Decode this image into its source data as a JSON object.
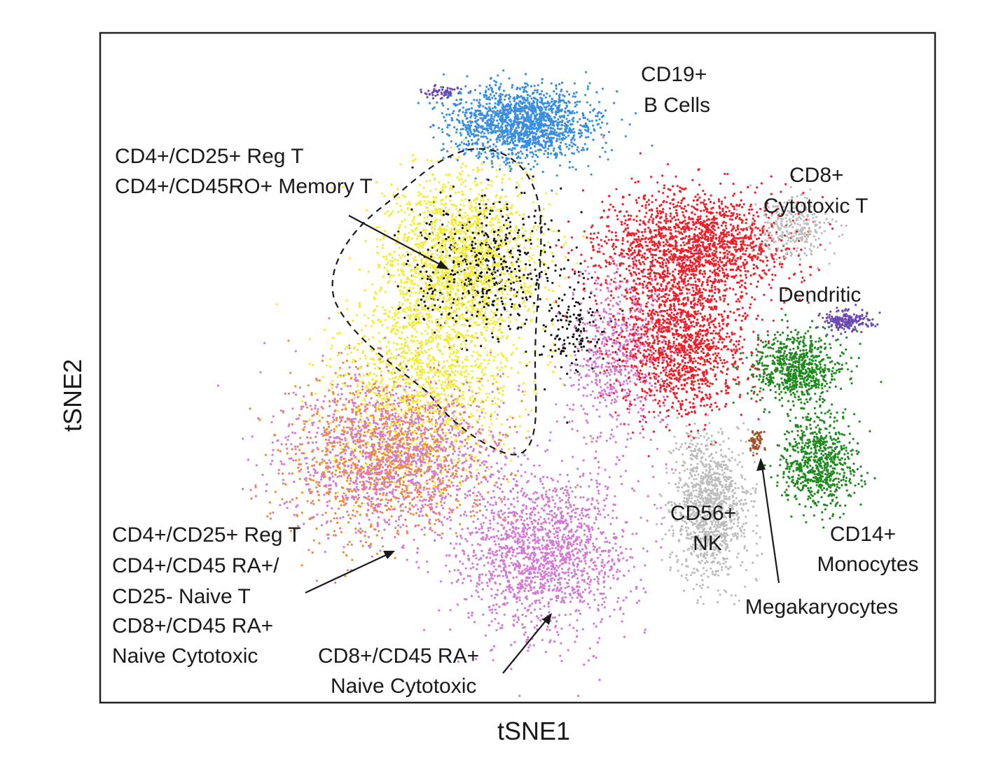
{
  "chart_data": {
    "type": "scatter",
    "title": "",
    "xlabel": "tSNE1",
    "ylabel": "tSNE2",
    "grid": false,
    "legend": "none",
    "ticks": false,
    "clusters": [
      {
        "name": "CD19+ B Cells",
        "color": "#3a8ee0",
        "points": 1800,
        "blobs": [
          [
            0.505,
            0.135,
            0.055,
            0.035,
            1.0
          ]
        ]
      },
      {
        "name": "CD8+ Cytotoxic T",
        "color": "#f01e28",
        "points": 3600,
        "blobs": [
          [
            0.71,
            0.32,
            0.075,
            0.055,
            0.55
          ],
          [
            0.695,
            0.465,
            0.05,
            0.07,
            0.45
          ]
        ]
      },
      {
        "name": "CD4+ Memory / Reg T",
        "color": "#f5ec30",
        "points": 3200,
        "blobs": [
          [
            0.43,
            0.34,
            0.06,
            0.085,
            0.6
          ],
          [
            0.39,
            0.52,
            0.07,
            0.09,
            0.4
          ]
        ]
      },
      {
        "name": "Naive T",
        "color": "#d47ad4",
        "points": 4200,
        "blobs": [
          [
            0.35,
            0.63,
            0.09,
            0.08,
            0.4
          ],
          [
            0.53,
            0.78,
            0.065,
            0.075,
            0.45
          ],
          [
            0.62,
            0.48,
            0.04,
            0.09,
            0.15
          ]
        ]
      },
      {
        "name": "Naive T (orange)",
        "color": "#f28c28",
        "points": 1100,
        "blobs": [
          [
            0.34,
            0.63,
            0.08,
            0.08,
            1.0
          ]
        ]
      },
      {
        "name": "Memory T (black)",
        "color": "#111111",
        "points": 700,
        "blobs": [
          [
            0.46,
            0.35,
            0.06,
            0.07,
            0.8
          ],
          [
            0.57,
            0.44,
            0.025,
            0.05,
            0.2
          ]
        ]
      },
      {
        "name": "CD56+ NK",
        "color": "#bdbdbd",
        "points": 1500,
        "blobs": [
          [
            0.73,
            0.71,
            0.03,
            0.07,
            0.8
          ],
          [
            0.83,
            0.29,
            0.03,
            0.03,
            0.2
          ]
        ]
      },
      {
        "name": "CD14+ Monocytes",
        "color": "#1e8a1e",
        "points": 1500,
        "blobs": [
          [
            0.835,
            0.5,
            0.035,
            0.035,
            0.5
          ],
          [
            0.86,
            0.64,
            0.03,
            0.045,
            0.5
          ]
        ]
      },
      {
        "name": "Dendritic",
        "color": "#6a4ab0",
        "points": 260,
        "blobs": [
          [
            0.895,
            0.43,
            0.018,
            0.012,
            0.75
          ],
          [
            0.41,
            0.09,
            0.015,
            0.006,
            0.25
          ]
        ]
      },
      {
        "name": "Megakaryocytes",
        "color": "#a0522d",
        "points": 60,
        "blobs": [
          [
            0.785,
            0.61,
            0.006,
            0.012,
            1.0
          ]
        ]
      }
    ]
  },
  "annotations": {
    "b_cells": [
      "CD19+",
      "B Cells"
    ],
    "cd8_cytotoxic": [
      "CD8+",
      "Cytotoxic T"
    ],
    "dendritic": "Dendritic",
    "memory_t": [
      "CD4+/CD25+ Reg T",
      "CD4+/CD45RO+ Memory T"
    ],
    "naive_t": [
      "CD4+/CD25+ Reg T",
      "CD4+/CD45 RA+/",
      "CD25- Naive T",
      "CD8+/CD45 RA+",
      "Naive Cytotoxic"
    ],
    "naive_cytotoxic": [
      "CD8+/CD45 RA+",
      "Naive Cytotoxic"
    ],
    "nk": [
      "CD56+",
      "NK"
    ],
    "monocytes": [
      "CD14+",
      "Monocytes"
    ],
    "megakaryocytes": "Megakaryocytes"
  }
}
